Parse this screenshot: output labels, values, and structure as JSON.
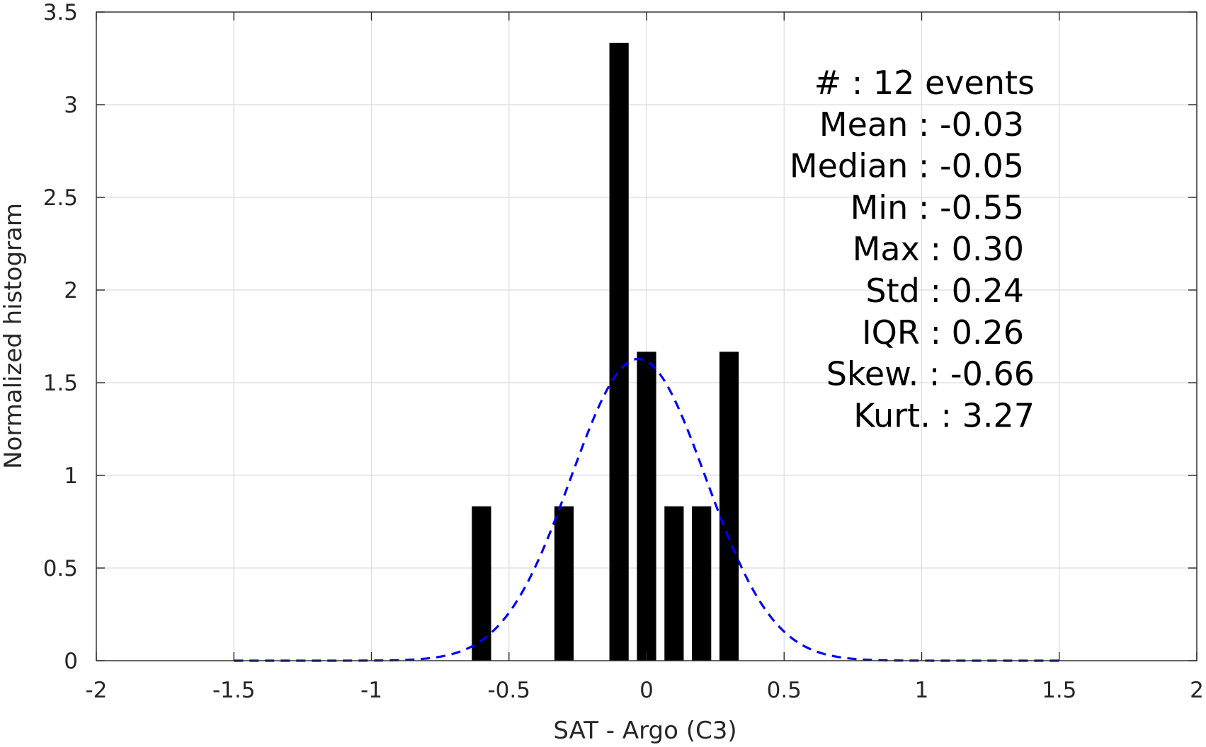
{
  "chart_data": {
    "type": "bar",
    "xlabel": "SAT - Argo (C3)",
    "ylabel": "Normalized histogram",
    "xlim": [
      -2,
      2
    ],
    "ylim": [
      0,
      3.5
    ],
    "grid": true,
    "x_ticks": [
      -2,
      -1.5,
      -1,
      -0.5,
      0,
      0.5,
      1,
      1.5,
      2
    ],
    "x_tick_labels": [
      "-2",
      "-1.5",
      "-1",
      "-0.5",
      "0",
      "0.5",
      "1",
      "1.5",
      "2"
    ],
    "y_ticks": [
      0,
      0.5,
      1,
      1.5,
      2,
      2.5,
      3,
      3.5
    ],
    "y_tick_labels": [
      "0",
      "0.5",
      "1",
      "1.5",
      "2",
      "2.5",
      "3",
      "3.5"
    ],
    "bar_width": 0.07,
    "bars": [
      {
        "x": -0.6,
        "value": 0.833
      },
      {
        "x": -0.3,
        "value": 0.833
      },
      {
        "x": -0.1,
        "value": 3.333
      },
      {
        "x": 0.0,
        "value": 1.667
      },
      {
        "x": 0.1,
        "value": 0.833
      },
      {
        "x": 0.2,
        "value": 0.833
      },
      {
        "x": 0.3,
        "value": 1.667
      }
    ],
    "fit_curve": {
      "style": "dashed",
      "color": "#0000ff",
      "mean": -0.03,
      "std": 0.245,
      "x_range": [
        -1.5,
        1.5
      ]
    },
    "bar_color": "#000000",
    "stats_text": [
      "#  : 12 events",
      "Mean : -0.03",
      "Median : -0.05",
      "Min : -0.55",
      "Max : 0.30",
      "Std : 0.24",
      "IQR : 0.26",
      "Skew. : -0.66",
      "Kurt. : 3.27"
    ]
  }
}
